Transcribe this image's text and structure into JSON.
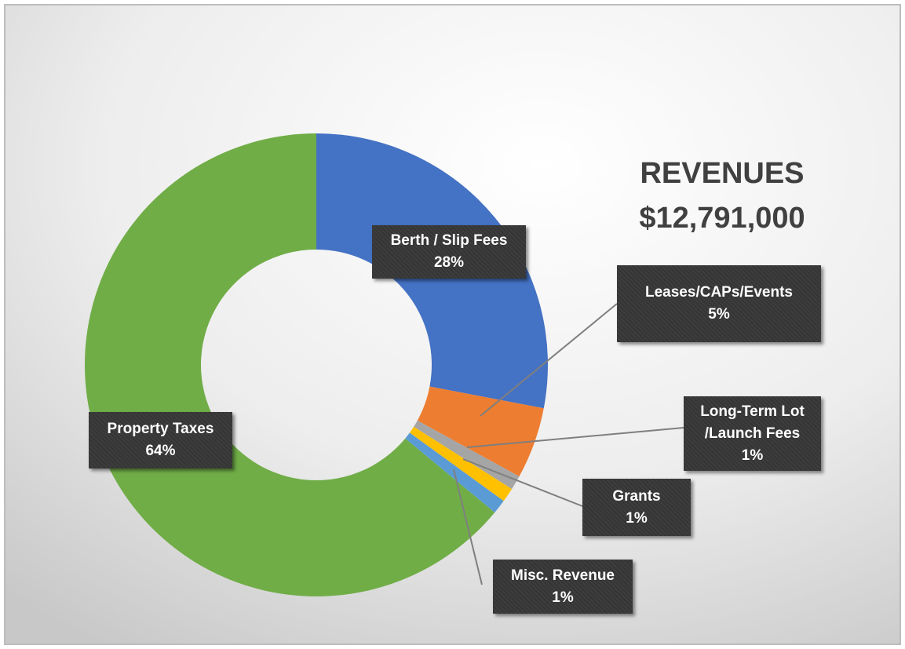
{
  "chart_data": {
    "type": "donut",
    "title": "REVENUES",
    "subtitle": "$12,791,000",
    "categories": [
      "Berth / Slip Fees",
      "Leases/CAPs/Events",
      "Long-Term Lot /Launch Fees",
      "Grants",
      "Misc. Revenue",
      "Property Taxes"
    ],
    "values": [
      28,
      5,
      1,
      1,
      1,
      64
    ],
    "value_labels": [
      "28%",
      "5%",
      "1%",
      "1%",
      "1%",
      "64%"
    ],
    "colors": [
      "#4472c4",
      "#ed7d31",
      "#a5a5a5",
      "#ffc000",
      "#5b9bd5",
      "#70ad47"
    ]
  }
}
